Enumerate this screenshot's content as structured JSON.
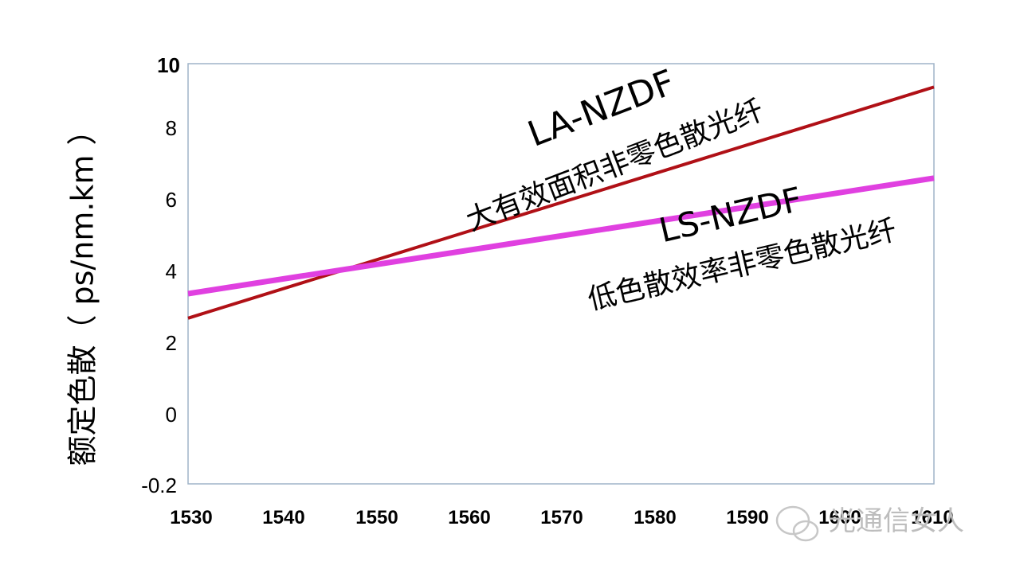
{
  "chart_data": {
    "type": "line",
    "title": "",
    "xlabel": "",
    "ylabel": "额定色散（ ps/nm.km ）",
    "xlim": [
      1530,
      1610
    ],
    "ylim": [
      -0.2,
      10
    ],
    "x_ticks": [
      "1530",
      "1540",
      "1550",
      "1560",
      "1570",
      "1580",
      "1590",
      "1600",
      "1610"
    ],
    "y_ticks": [
      "10",
      "8",
      "6",
      "4",
      "2",
      "0",
      "-0.2"
    ],
    "grid": false,
    "series": [
      {
        "name": "LA-NZDF",
        "color": "#b01016",
        "points": [
          [
            1530,
            2.8
          ],
          [
            1610,
            9.4
          ]
        ]
      },
      {
        "name": "LS-NZDF",
        "color": "#e040e0",
        "points": [
          [
            1530,
            3.5
          ],
          [
            1610,
            6.8
          ]
        ]
      }
    ],
    "annotations": [
      {
        "lines": [
          "LA-NZDF",
          "大有效面积非零色散光纤"
        ],
        "anchor_x": 1567,
        "anchor_y": 6.2
      },
      {
        "lines": [
          "LS-NZDF",
          "低色散效率非零色散光纤"
        ],
        "anchor_x": 1578,
        "anchor_y": 3.3
      }
    ]
  },
  "watermark": "光通信女人"
}
